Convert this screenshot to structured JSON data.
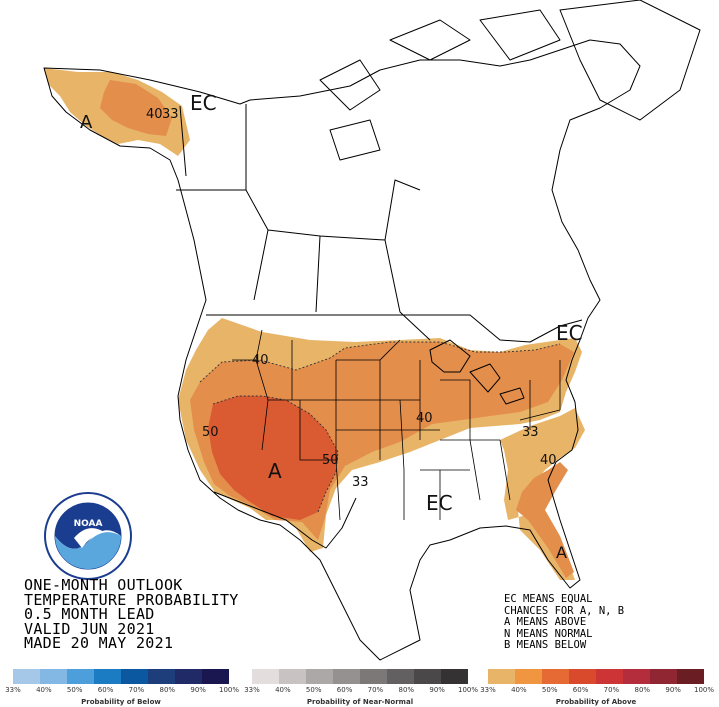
{
  "map": {
    "labels": {
      "ec_alaska": "EC",
      "a_alaska": "A",
      "c40_alaska": "40",
      "c33_alaska": "33",
      "ec_northeast": "EC",
      "c40_northwest": "40",
      "c50_west": "50",
      "a_southwest": "A",
      "c50_plains": "50",
      "c40_midwest": "40",
      "c33_southeast": "33",
      "c40_southeast": "40",
      "c33_texas": "33",
      "ec_south": "EC",
      "a_florida": "A"
    },
    "colors": {
      "water": "#ffffff",
      "land": "#ffffff",
      "boundary": "#000000",
      "above_33": "#e8b467",
      "above_40": "#e48e4c",
      "above_50": "#da5b32"
    }
  },
  "title": {
    "line1": "ONE-MONTH OUTLOOK",
    "line2": "TEMPERATURE PROBABILITY",
    "line3": "0.5 MONTH LEAD",
    "line4": "VALID JUN 2021",
    "line5": "MADE 20 MAY 2021"
  },
  "key": {
    "line1": "EC MEANS EQUAL",
    "line2": "CHANCES FOR A, N, B",
    "line3": "A MEANS ABOVE",
    "line4": "N MEANS NORMAL",
    "line5": "B MEANS BELOW"
  },
  "logo": {
    "icon": "noaa-logo-icon",
    "text": "NOAA"
  },
  "legends": [
    {
      "caption": "Probability of Below",
      "ticks": [
        "33%",
        "40%",
        "50%",
        "60%",
        "70%",
        "80%",
        "90%",
        "100%"
      ],
      "colors": [
        "#a6c8e8",
        "#84b8e4",
        "#4d9fdc",
        "#1b7cc4",
        "#0b58a0",
        "#1d3e7a",
        "#1f2a66",
        "#1a1650"
      ]
    },
    {
      "caption": "Probability of Near-Normal",
      "ticks": [
        "33%",
        "40%",
        "50%",
        "60%",
        "70%",
        "80%",
        "90%",
        "100%"
      ],
      "colors": [
        "#e3dddd",
        "#c8c2c2",
        "#ada8a8",
        "#969191",
        "#7c7878",
        "#626060",
        "#4a4848",
        "#343232"
      ]
    },
    {
      "caption": "Probability of Above",
      "ticks": [
        "33%",
        "40%",
        "50%",
        "60%",
        "70%",
        "80%",
        "90%",
        "100%"
      ],
      "colors": [
        "#e8b467",
        "#f09540",
        "#e56a33",
        "#d94a2c",
        "#cc3435",
        "#b32d3c",
        "#8f2631",
        "#6b1d24"
      ]
    }
  ]
}
